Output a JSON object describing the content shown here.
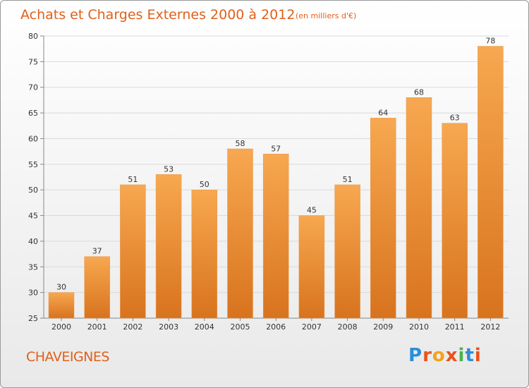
{
  "title": "Achats et Charges Externes 2000 à 2012",
  "unit_note": "(en milliers d'€)",
  "town": "CHAVEIGNES",
  "brand": {
    "text": "Proxiti",
    "letter_colors": [
      "#2a8fd6",
      "#e8531a",
      "#f3a21b",
      "#e8531a",
      "#4bb34b",
      "#2a8fd6",
      "#e8531a"
    ]
  },
  "colors": {
    "bar_light": "#f7a850",
    "bar_dark": "#d8731e",
    "title": "#e0601a",
    "grid": "#d9d9d9"
  },
  "chart_data": {
    "type": "bar",
    "title": "Achats et Charges Externes 2000 à 2012",
    "subtitle": "(en milliers d'€)",
    "categories": [
      "2000",
      "2001",
      "2002",
      "2003",
      "2004",
      "2005",
      "2006",
      "2007",
      "2008",
      "2009",
      "2010",
      "2011",
      "2012"
    ],
    "values": [
      30,
      37,
      51,
      53,
      50,
      58,
      57,
      45,
      51,
      64,
      68,
      63,
      78
    ],
    "ylim": [
      25,
      80
    ],
    "yticks": [
      25,
      30,
      35,
      40,
      45,
      50,
      55,
      60,
      65,
      70,
      75,
      80
    ],
    "grid": true,
    "data_labels": true
  }
}
